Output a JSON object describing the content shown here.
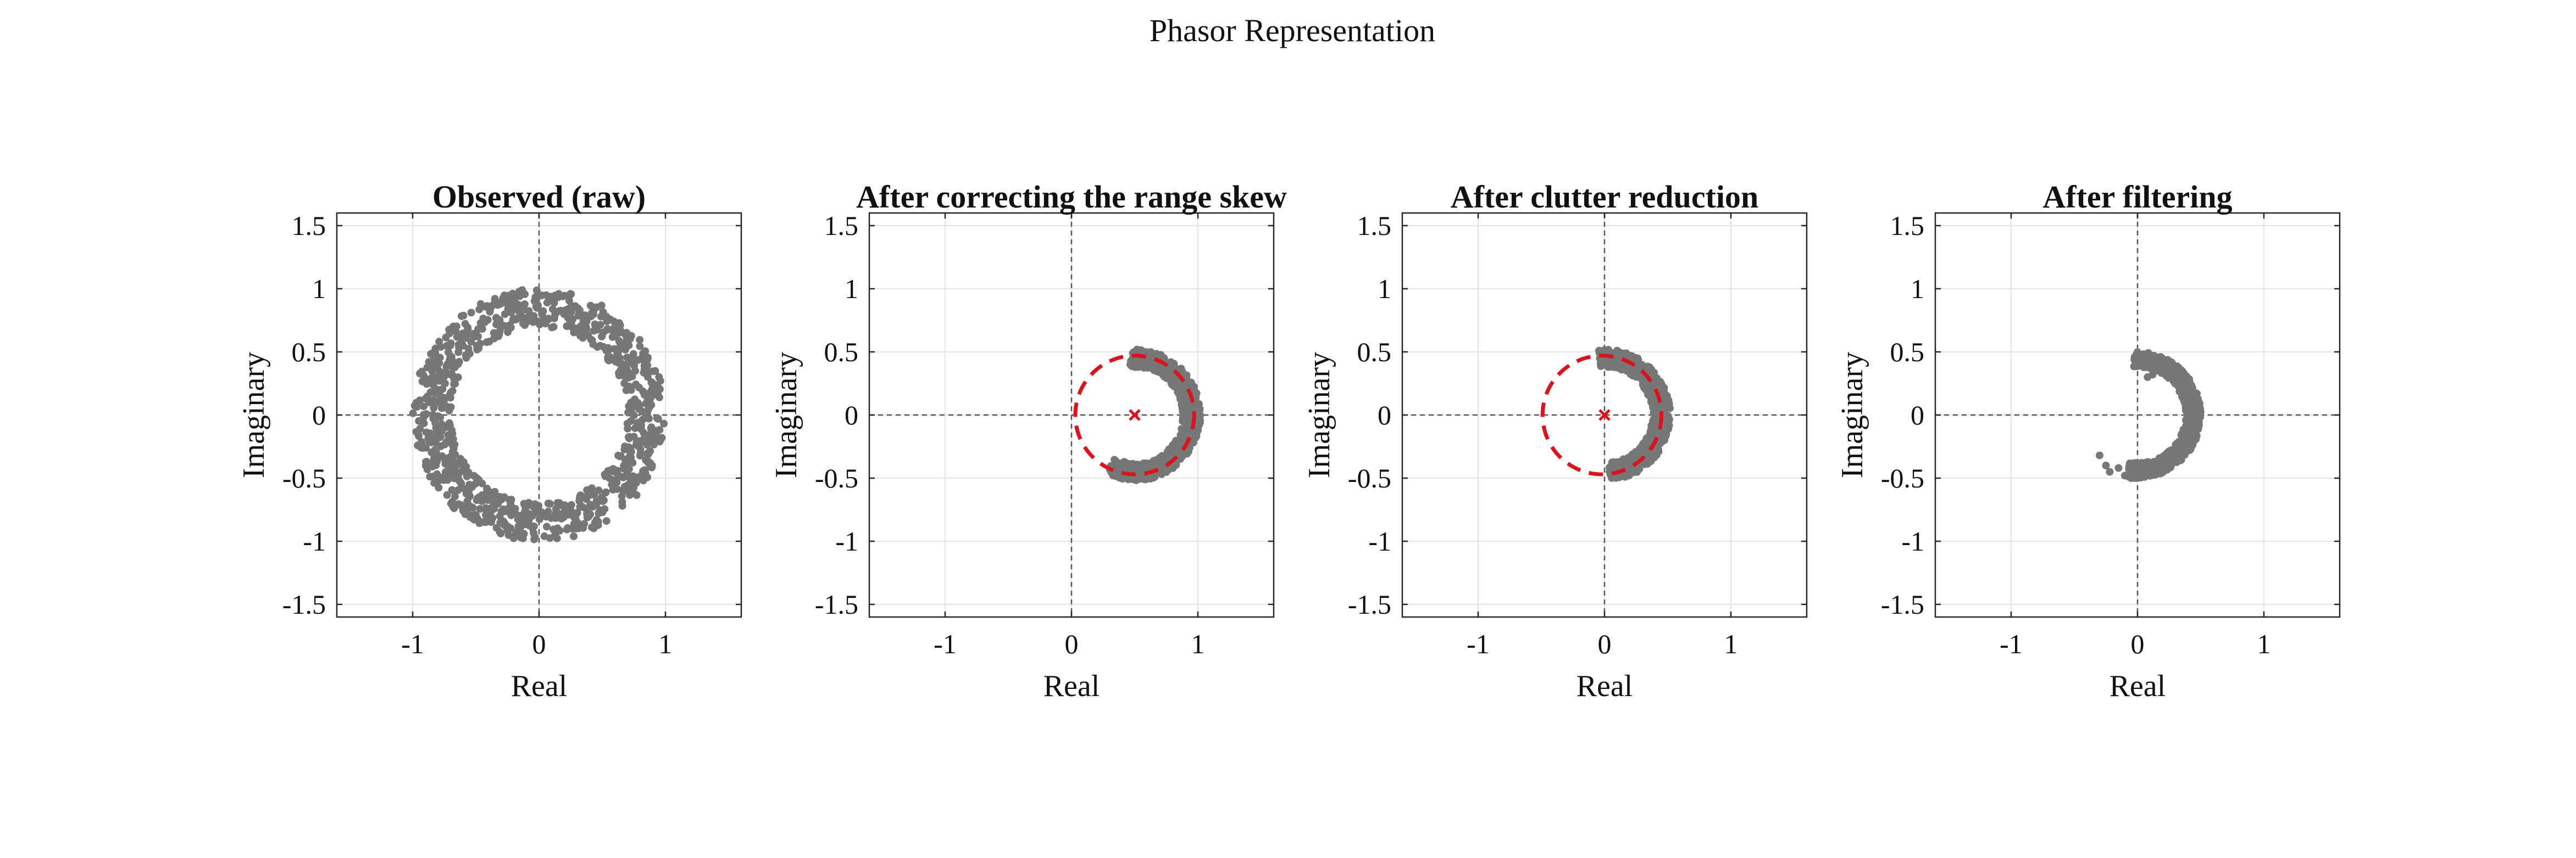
{
  "figure": {
    "suptitle": "Phasor Representation"
  },
  "style": {
    "point_color": "#777777",
    "circle_color": "#d9141e",
    "axis_color": "#262626",
    "grid_color": "#e6e6e6",
    "zero_line_color": "#555555"
  },
  "chart_data": [
    {
      "type": "scatter",
      "title": "Observed (raw)",
      "xlabel": "Real",
      "ylabel": "Imaginary",
      "xlim": [
        -1.6,
        1.6
      ],
      "ylim": [
        -1.6,
        1.6
      ],
      "xticks": [
        -1,
        0,
        1
      ],
      "xtick_labels": [
        "-1",
        "0",
        "1"
      ],
      "yticks": [
        1.5,
        1,
        0.5,
        0,
        -0.5,
        -1,
        -1.5
      ],
      "ytick_labels": [
        "1.5",
        "1",
        "0.5",
        "0",
        "-0.5",
        "-1",
        "-1.5"
      ],
      "grid": true,
      "zero_lines": true,
      "points": {
        "shape": "ring",
        "center": [
          0.0,
          0.0
        ],
        "radius_range": [
          0.7,
          1.0
        ],
        "angle_range_deg": [
          0,
          360
        ],
        "count": 1000
      }
    },
    {
      "type": "scatter",
      "title": "After correcting the range skew",
      "xlabel": "Real",
      "ylabel": "Imaginary",
      "xlim": [
        -1.6,
        1.6
      ],
      "ylim": [
        -1.6,
        1.6
      ],
      "xticks": [
        -1,
        0,
        1
      ],
      "xtick_labels": [
        "-1",
        "0",
        "1"
      ],
      "yticks": [
        1.5,
        1,
        0.5,
        0,
        -0.5,
        -1,
        -1.5
      ],
      "ytick_labels": [
        "1.5",
        "1",
        "0.5",
        "0",
        "-0.5",
        "-1",
        "-1.5"
      ],
      "grid": true,
      "zero_lines": true,
      "points": {
        "shape": "arc",
        "center": [
          0.5,
          0.0
        ],
        "radius_range": [
          0.38,
          0.52
        ],
        "angle_range_deg": [
          -115,
          95
        ],
        "count": 700
      },
      "fitted_circle": {
        "center": [
          0.5,
          0.0
        ],
        "radius": 0.47
      },
      "center_marker": [
        0.5,
        0.0
      ]
    },
    {
      "type": "scatter",
      "title": "After clutter reduction",
      "xlabel": "Real",
      "ylabel": "Imaginary",
      "xlim": [
        -1.6,
        1.6
      ],
      "ylim": [
        -1.6,
        1.6
      ],
      "xticks": [
        -1,
        0,
        1
      ],
      "xtick_labels": [
        "-1",
        "0",
        "1"
      ],
      "yticks": [
        1.5,
        1,
        0.5,
        0,
        -0.5,
        -1,
        -1.5
      ],
      "ytick_labels": [
        "1.5",
        "1",
        "0.5",
        "0",
        "-0.5",
        "-1",
        "-1.5"
      ],
      "grid": true,
      "zero_lines": true,
      "points": {
        "shape": "arc",
        "center": [
          0.0,
          0.0
        ],
        "radius_range": [
          0.38,
          0.52
        ],
        "angle_range_deg": [
          -85,
          95
        ],
        "count": 700
      },
      "fitted_circle": {
        "center": [
          -0.02,
          0.0
        ],
        "radius": 0.47
      },
      "center_marker": [
        0.0,
        0.0
      ]
    },
    {
      "type": "scatter",
      "title": "After filtering",
      "xlabel": "Real",
      "ylabel": "Imaginary",
      "xlim": [
        -1.6,
        1.6
      ],
      "ylim": [
        -1.6,
        1.6
      ],
      "xticks": [
        -1,
        0,
        1
      ],
      "xtick_labels": [
        "-1",
        "0",
        "1"
      ],
      "yticks": [
        1.5,
        1,
        0.5,
        0,
        -0.5,
        -1,
        -1.5
      ],
      "ytick_labels": [
        "1.5",
        "1",
        "0.5",
        "0",
        "-0.5",
        "-1",
        "-1.5"
      ],
      "grid": true,
      "zero_lines": true,
      "points": {
        "shape": "arc",
        "center": [
          0.0,
          0.0
        ],
        "radius_range": [
          0.38,
          0.5
        ],
        "angle_range_deg": [
          -100,
          95
        ],
        "count": 650
      },
      "extra_points": [
        {
          "x": -0.3,
          "y": -0.32
        },
        {
          "x": -0.25,
          "y": -0.4
        },
        {
          "x": -0.22,
          "y": -0.45
        },
        {
          "x": -0.15,
          "y": -0.42
        },
        {
          "x": -0.1,
          "y": -0.48
        },
        {
          "x": -0.05,
          "y": -0.5
        },
        {
          "x": 0.08,
          "y": 0.3
        },
        {
          "x": 0.12,
          "y": 0.32
        }
      ]
    }
  ]
}
